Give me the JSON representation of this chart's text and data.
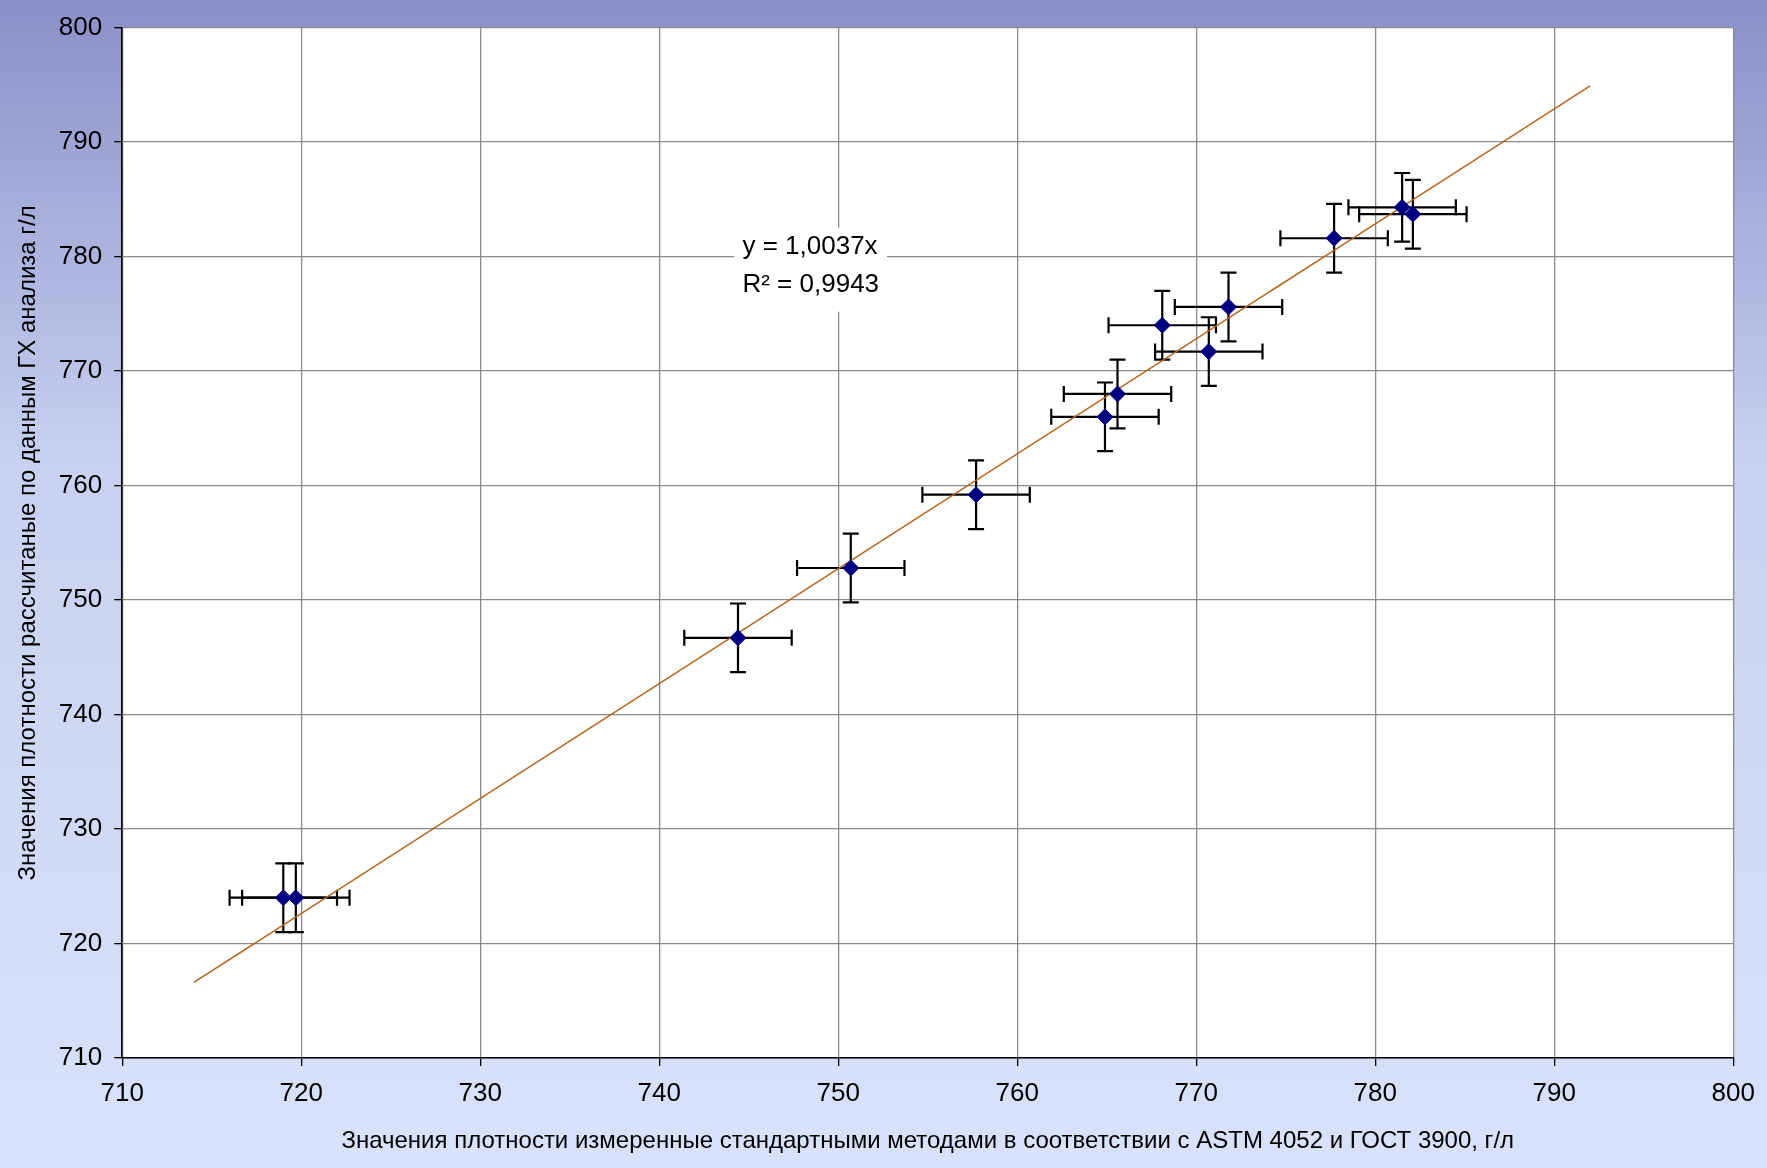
{
  "chart_data": {
    "type": "scatter",
    "xlabel": "Значения плотности измеренные стандартными методами в соответствии с ASTM 4052 и ГОСТ 3900, г/л",
    "ylabel": "Значения плотности рассчитаные по данным ГХ анализа г/л",
    "annotations": [
      "y = 1,0037x",
      "R² = 0,9943"
    ],
    "series": [
      {
        "type": "scatter",
        "color": "#000080",
        "marker": "diamond",
        "x": [
          719.0,
          719.7,
          744.4,
          750.7,
          757.7,
          764.9,
          765.6,
          768.1,
          770.7,
          771.8,
          777.7,
          781.5,
          782.1
        ],
        "values": [
          724.0,
          724.0,
          746.7,
          752.8,
          759.2,
          766.0,
          768.0,
          774.0,
          771.7,
          775.6,
          781.6,
          784.3,
          783.7
        ],
        "errors": [
          3,
          3,
          3,
          3,
          3,
          3,
          3,
          3,
          3,
          3,
          3,
          3,
          3
        ],
        "xerrors": [
          3,
          3,
          3,
          3,
          3,
          3,
          3,
          3,
          3,
          3,
          3,
          3,
          3
        ]
      },
      {
        "type": "line",
        "color": "#b5651d",
        "x": [
          714,
          792
        ],
        "values": [
          716.6,
          794.9
        ]
      }
    ],
    "xlim": [
      710,
      800
    ],
    "xticks": [
      710,
      720,
      730,
      740,
      750,
      760,
      770,
      780,
      790,
      800
    ],
    "ylim": [
      710,
      800
    ],
    "yticks": [
      710,
      720,
      730,
      740,
      750,
      760,
      770,
      780,
      790,
      800
    ],
    "grid": true,
    "legend": false
  }
}
